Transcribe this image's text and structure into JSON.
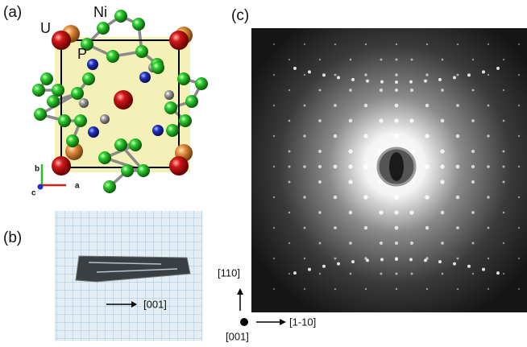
{
  "panels": {
    "a": {
      "label": "(a)",
      "atoms": {
        "u": "U",
        "ni": "Ni",
        "p": "P"
      },
      "axes": {
        "b": "b",
        "a": "a",
        "c": "c"
      }
    },
    "b": {
      "label": "(b)",
      "direction": "[001]"
    },
    "c": {
      "label": "(c)",
      "vertical": "[110]",
      "horizontal": "[1-10]",
      "beam": "[001]"
    }
  }
}
